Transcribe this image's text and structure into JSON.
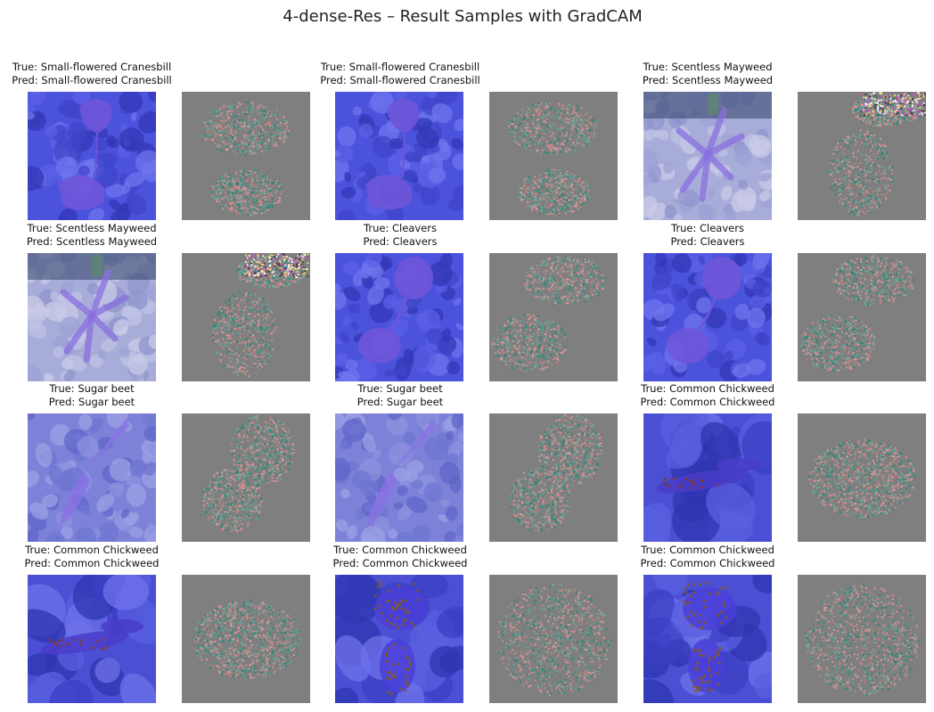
{
  "figure": {
    "title": "4-dense-Res – Result Samples with GradCAM"
  },
  "samples": [
    {
      "true_label": "True: Small-flowered Cranesbill",
      "pred_label": "Pred: Small-flowered Cranesbill",
      "style": "cranesbill"
    },
    {
      "true_label": "True: Small-flowered Cranesbill",
      "pred_label": "Pred: Small-flowered Cranesbill",
      "style": "cranesbill"
    },
    {
      "true_label": "True: Scentless Mayweed",
      "pred_label": "Pred: Scentless Mayweed",
      "style": "mayweed"
    },
    {
      "true_label": "True: Scentless Mayweed",
      "pred_label": "Pred: Scentless Mayweed",
      "style": "mayweed"
    },
    {
      "true_label": "True: Cleavers",
      "pred_label": "Pred: Cleavers",
      "style": "cleavers"
    },
    {
      "true_label": "True: Cleavers",
      "pred_label": "Pred: Cleavers",
      "style": "cleavers"
    },
    {
      "true_label": "True: Sugar beet",
      "pred_label": "Pred: Sugar beet",
      "style": "sugarbeet"
    },
    {
      "true_label": "True: Sugar beet",
      "pred_label": "Pred: Sugar beet",
      "style": "sugarbeet"
    },
    {
      "true_label": "True: Common Chickweed",
      "pred_label": "Pred: Common Chickweed",
      "style": "chickweed"
    },
    {
      "true_label": "True: Common Chickweed",
      "pred_label": "Pred: Common Chickweed",
      "style": "chickweed"
    },
    {
      "true_label": "True: Common Chickweed",
      "pred_label": "Pred: Common Chickweed",
      "style": "chickweed2"
    },
    {
      "true_label": "True: Common Chickweed",
      "pred_label": "Pred: Common Chickweed",
      "style": "chickweed2"
    }
  ],
  "colors": {
    "overlay_blue": "#5a5fe0",
    "plant_purple": "#6f55d8",
    "gradcam_bg": "#7f7f7f",
    "noise_teal": "#1f8a7a",
    "noise_pink": "#e39a9a"
  }
}
